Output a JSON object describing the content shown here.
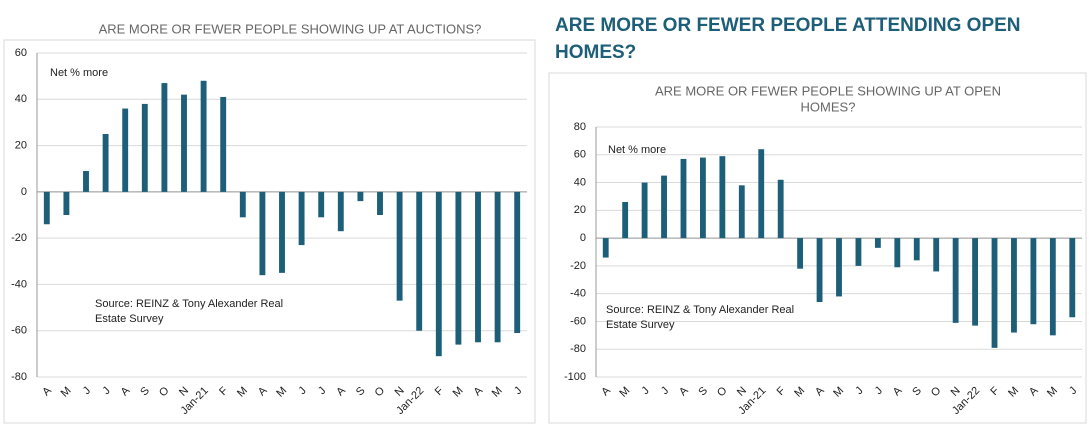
{
  "heading": [
    "ARE MORE OR FEWER PEOPLE ATTENDING OPEN",
    "HOMES?"
  ],
  "chart_data": [
    {
      "type": "bar",
      "title": [
        "ARE MORE OR FEWER PEOPLE SHOWING UP AT AUCTIONS?"
      ],
      "annotation": "Net % more",
      "source": [
        "Source: REINZ & Tony Alexander Real",
        "Estate Survey"
      ],
      "categories": [
        "A",
        "M",
        "J",
        "J",
        "A",
        "S",
        "O",
        "N",
        "Jan-21",
        "F",
        "M",
        "A",
        "M",
        "J",
        "J",
        "A",
        "S",
        "O",
        "N",
        "Jan-22",
        "F",
        "M",
        "A",
        "M",
        "J"
      ],
      "values": [
        -14,
        -10,
        9,
        25,
        36,
        38,
        47,
        42,
        48,
        41,
        -11,
        -36,
        -35,
        -23,
        -11,
        -17,
        -4,
        -10,
        -47,
        -60,
        -71,
        -66,
        -65,
        -65,
        -61
      ],
      "color": "#1d5e78",
      "ylim": [
        -80,
        60
      ],
      "yticks": [
        -80,
        -60,
        -40,
        -20,
        0,
        20,
        40,
        60
      ],
      "grid": true
    },
    {
      "type": "bar",
      "title": [
        "ARE MORE OR FEWER PEOPLE SHOWING UP AT OPEN",
        "HOMES?"
      ],
      "annotation": "Net % more",
      "source": [
        "Source: REINZ & Tony Alexander Real",
        "Estate Survey"
      ],
      "categories": [
        "A",
        "M",
        "J",
        "J",
        "A",
        "S",
        "O",
        "N",
        "Jan-21",
        "F",
        "M",
        "A",
        "M",
        "J",
        "J",
        "A",
        "S",
        "O",
        "N",
        "Jan-22",
        "F",
        "M",
        "A",
        "M",
        "J"
      ],
      "values": [
        -14,
        26,
        40,
        45,
        57,
        58,
        59,
        38,
        64,
        42,
        -22,
        -46,
        -42,
        -20,
        -7,
        -21,
        -16,
        -24,
        -61,
        -63,
        -79,
        -68,
        -62,
        -70,
        -57
      ],
      "color": "#1d5e78",
      "ylim": [
        -100,
        80
      ],
      "yticks": [
        -100,
        -80,
        -60,
        -40,
        -20,
        0,
        20,
        40,
        60,
        80
      ],
      "grid": true
    }
  ]
}
